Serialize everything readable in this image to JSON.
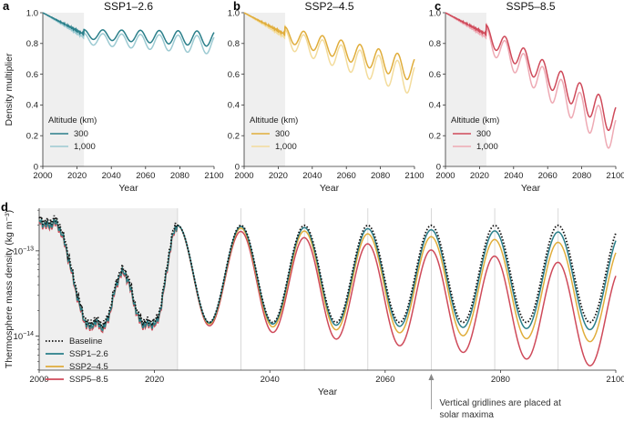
{
  "chart_data": [
    {
      "type": "line",
      "panel_label": "a",
      "title": "SSP1–2.6",
      "xlabel": "Year",
      "ylabel": "Density multiplier",
      "xlim": [
        2000,
        2100
      ],
      "ylim": [
        0,
        1.0
      ],
      "x_ticks": [
        "2000",
        "2020",
        "2040",
        "2060",
        "2080",
        "2100"
      ],
      "y_ticks": [
        "0",
        "0.2",
        "0.4",
        "0.6",
        "0.8",
        "1.0"
      ],
      "shaded_range": [
        2000,
        2024
      ],
      "legend_title": "Altitude (km)",
      "color_main": "#2a7f8a",
      "color_light": "#9ccad2",
      "series": [
        {
          "name": "300",
          "trend_end": 0.83,
          "amplitude": 0.05
        },
        {
          "name": "1,000",
          "trend_end": 0.79,
          "amplitude": 0.06
        }
      ]
    },
    {
      "type": "line",
      "panel_label": "b",
      "title": "SSP2–4.5",
      "xlabel": "Year",
      "ylabel": "",
      "xlim": [
        2000,
        2100
      ],
      "ylim": [
        0,
        1.0
      ],
      "x_ticks": [
        "2000",
        "2020",
        "2040",
        "2060",
        "2080",
        "2100"
      ],
      "y_ticks": [
        "0",
        "0.2",
        "0.4",
        "0.6",
        "0.8",
        "1.0"
      ],
      "shaded_range": [
        2000,
        2024
      ],
      "legend_title": "Altitude (km)",
      "color_main": "#e0ad3b",
      "color_light": "#f3dc9c",
      "series": [
        {
          "name": "300",
          "trend_end": 0.63,
          "amplitude": 0.08
        },
        {
          "name": "1,000",
          "trend_end": 0.56,
          "amplitude": 0.1
        }
      ]
    },
    {
      "type": "line",
      "panel_label": "c",
      "title": "SSP5–8.5",
      "xlabel": "Year",
      "ylabel": "",
      "xlim": [
        2000,
        2100
      ],
      "ylim": [
        0,
        1.0
      ],
      "x_ticks": [
        "2000",
        "2020",
        "2040",
        "2060",
        "2080",
        "2100"
      ],
      "y_ticks": [
        "0",
        "0.2",
        "0.4",
        "0.6",
        "0.8",
        "1.0"
      ],
      "shaded_range": [
        2000,
        2024
      ],
      "legend_title": "Altitude (km)",
      "color_main": "#cf4a5a",
      "color_light": "#eeaab4",
      "series": [
        {
          "name": "300",
          "trend_end": 0.3,
          "amplitude": 0.1
        },
        {
          "name": "1,000",
          "trend_end": 0.2,
          "amplitude": 0.12
        }
      ]
    },
    {
      "type": "line",
      "panel_label": "d",
      "title": "",
      "xlabel": "Year",
      "ylabel": "Thermosphere mass density (kg m⁻³)",
      "xlim": [
        2000,
        2100
      ],
      "ylim_log10": [
        -14.4,
        -12.5
      ],
      "yscale": "log",
      "x_ticks": [
        "2000",
        "2020",
        "2040",
        "2060",
        "2080",
        "2100"
      ],
      "y_ticks": [
        {
          "base": "10",
          "exp": "−13"
        },
        {
          "base": "10",
          "exp": "−14"
        }
      ],
      "shaded_range": [
        2000,
        2024
      ],
      "solar_maxima_years": [
        2024,
        2035,
        2046,
        2057,
        2068,
        2079,
        2090
      ],
      "series": [
        {
          "name": "Baseline",
          "color": "#111111",
          "style": "dotted",
          "max_log10": -12.7,
          "min_log10": -13.84
        },
        {
          "name": "SSP1–2.6",
          "color": "#2a7f8a",
          "style": "solid",
          "max_log10": -12.79,
          "min_log10": -13.93
        },
        {
          "name": "SSP2–4.5",
          "color": "#e0ad3b",
          "style": "solid",
          "max_log10": -12.93,
          "min_log10": -14.08
        },
        {
          "name": "SSP5–8.5",
          "color": "#cf4a5a",
          "style": "solid",
          "max_log10": -13.2,
          "min_log10": -14.38
        }
      ],
      "annotation": {
        "line1": "Vertical gridlines are placed at",
        "line2": "solar maxima"
      }
    }
  ]
}
